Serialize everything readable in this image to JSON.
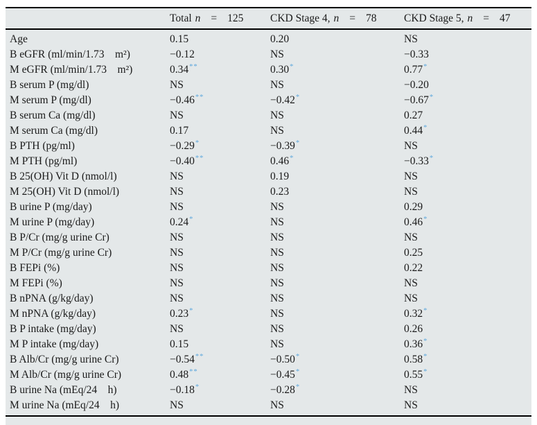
{
  "colors": {
    "significance_star": "#5fa8dc",
    "panel_bg": "#e4e8e9",
    "rule": "#000000",
    "text": "#1a1a1a"
  },
  "table": {
    "header": {
      "columns": [
        {
          "title": "Total",
          "n_symbol": "n",
          "eq": "=",
          "count": "125"
        },
        {
          "title": "CKD Stage 4,",
          "n_symbol": "n",
          "eq": "=",
          "count": "78"
        },
        {
          "title": "CKD Stage 5,",
          "n_symbol": "n",
          "eq": "=",
          "count": "47"
        }
      ]
    },
    "rows": [
      {
        "label": "Age",
        "cells": [
          {
            "v": "0.15",
            "stars": 0
          },
          {
            "v": "0.20",
            "stars": 0
          },
          {
            "v": "NS",
            "stars": 0
          }
        ]
      },
      {
        "label": "B eGFR (ml/min/1.73 m²)",
        "cells": [
          {
            "v": "−0.12",
            "stars": 0
          },
          {
            "v": "NS",
            "stars": 0
          },
          {
            "v": "−0.33",
            "stars": 0
          }
        ]
      },
      {
        "label": "M eGFR (ml/min/1.73 m²)",
        "cells": [
          {
            "v": "0.34",
            "stars": 2
          },
          {
            "v": "0.30",
            "stars": 1
          },
          {
            "v": "0.77",
            "stars": 1
          }
        ]
      },
      {
        "label": "B serum P (mg/dl)",
        "cells": [
          {
            "v": "NS",
            "stars": 0
          },
          {
            "v": "NS",
            "stars": 0
          },
          {
            "v": "−0.20",
            "stars": 0
          }
        ]
      },
      {
        "label": "M serum P (mg/dl)",
        "cells": [
          {
            "v": "−0.46",
            "stars": 2
          },
          {
            "v": "−0.42",
            "stars": 1
          },
          {
            "v": "−0.67",
            "stars": 1
          }
        ]
      },
      {
        "label": "B serum Ca (mg/dl)",
        "cells": [
          {
            "v": "NS",
            "stars": 0
          },
          {
            "v": "NS",
            "stars": 0
          },
          {
            "v": "0.27",
            "stars": 0
          }
        ]
      },
      {
        "label": "M serum Ca (mg/dl)",
        "cells": [
          {
            "v": "0.17",
            "stars": 0
          },
          {
            "v": "NS",
            "stars": 0
          },
          {
            "v": "0.44",
            "stars": 1
          }
        ]
      },
      {
        "label": "B PTH (pg/ml)",
        "cells": [
          {
            "v": "−0.29",
            "stars": 1
          },
          {
            "v": "−0.39",
            "stars": 1
          },
          {
            "v": "NS",
            "stars": 0
          }
        ]
      },
      {
        "label": "M PTH (pg/ml)",
        "cells": [
          {
            "v": "−0.40",
            "stars": 2
          },
          {
            "v": "0.46",
            "stars": 1
          },
          {
            "v": "−0.33",
            "stars": 1
          }
        ]
      },
      {
        "label": "B 25(OH) Vit D (nmol/l)",
        "cells": [
          {
            "v": "NS",
            "stars": 0
          },
          {
            "v": "0.19",
            "stars": 0
          },
          {
            "v": "NS",
            "stars": 0
          }
        ]
      },
      {
        "label": "M 25(OH) Vit D (nmol/l)",
        "cells": [
          {
            "v": "NS",
            "stars": 0
          },
          {
            "v": "0.23",
            "stars": 0
          },
          {
            "v": "NS",
            "stars": 0
          }
        ]
      },
      {
        "label": "B urine P (mg/day)",
        "cells": [
          {
            "v": "NS",
            "stars": 0
          },
          {
            "v": "NS",
            "stars": 0
          },
          {
            "v": "0.29",
            "stars": 0
          }
        ]
      },
      {
        "label": "M urine P (mg/day)",
        "cells": [
          {
            "v": "0.24",
            "stars": 1
          },
          {
            "v": "NS",
            "stars": 0
          },
          {
            "v": "0.46",
            "stars": 1
          }
        ]
      },
      {
        "label": "B P/Cr (mg/g urine Cr)",
        "cells": [
          {
            "v": "NS",
            "stars": 0
          },
          {
            "v": "NS",
            "stars": 0
          },
          {
            "v": "NS",
            "stars": 0
          }
        ]
      },
      {
        "label": "M P/Cr (mg/g urine Cr)",
        "cells": [
          {
            "v": "NS",
            "stars": 0
          },
          {
            "v": "NS",
            "stars": 0
          },
          {
            "v": "0.25",
            "stars": 0
          }
        ]
      },
      {
        "label": "B FEPi (%)",
        "cells": [
          {
            "v": "NS",
            "stars": 0
          },
          {
            "v": "NS",
            "stars": 0
          },
          {
            "v": "0.22",
            "stars": 0
          }
        ]
      },
      {
        "label": "M FEPi (%)",
        "cells": [
          {
            "v": "NS",
            "stars": 0
          },
          {
            "v": "NS",
            "stars": 0
          },
          {
            "v": "NS",
            "stars": 0
          }
        ]
      },
      {
        "label": "B nPNA (g/kg/day)",
        "cells": [
          {
            "v": "NS",
            "stars": 0
          },
          {
            "v": "NS",
            "stars": 0
          },
          {
            "v": "NS",
            "stars": 0
          }
        ]
      },
      {
        "label": "M nPNA (g/kg/day)",
        "cells": [
          {
            "v": "0.23",
            "stars": 1
          },
          {
            "v": "NS",
            "stars": 0
          },
          {
            "v": "0.32",
            "stars": 1
          }
        ]
      },
      {
        "label": "B P intake (mg/day)",
        "cells": [
          {
            "v": "NS",
            "stars": 0
          },
          {
            "v": "NS",
            "stars": 0
          },
          {
            "v": "0.26",
            "stars": 0
          }
        ]
      },
      {
        "label": "M P intake (mg/day)",
        "cells": [
          {
            "v": "0.15",
            "stars": 0
          },
          {
            "v": "NS",
            "stars": 0
          },
          {
            "v": "0.36",
            "stars": 1
          }
        ]
      },
      {
        "label": "B Alb/Cr (mg/g urine Cr)",
        "cells": [
          {
            "v": "−0.54",
            "stars": 2
          },
          {
            "v": "−0.50",
            "stars": 1
          },
          {
            "v": "0.58",
            "stars": 1
          }
        ]
      },
      {
        "label": "M Alb/Cr (mg/g urine Cr)",
        "cells": [
          {
            "v": "0.48",
            "stars": 2
          },
          {
            "v": "−0.45",
            "stars": 1
          },
          {
            "v": "0.55",
            "stars": 1
          }
        ]
      },
      {
        "label": "B urine Na (mEq/24 h)",
        "cells": [
          {
            "v": "−0.18",
            "stars": 1
          },
          {
            "v": "−0.28",
            "stars": 1
          },
          {
            "v": "NS",
            "stars": 0
          }
        ]
      },
      {
        "label": "M urine Na (mEq/24 h)",
        "cells": [
          {
            "v": "NS",
            "stars": 0
          },
          {
            "v": "NS",
            "stars": 0
          },
          {
            "v": "NS",
            "stars": 0
          }
        ]
      }
    ]
  }
}
